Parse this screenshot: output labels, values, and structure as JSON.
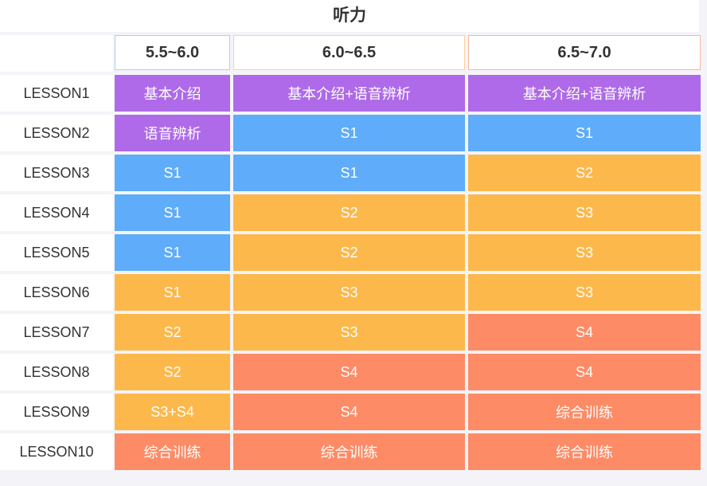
{
  "title": "听力",
  "colors": {
    "purple": "#ae6ae8",
    "blue": "#5eacfa",
    "yellow": "#fdb84b",
    "orange": "#fd8b66"
  },
  "columns": [
    {
      "label": "5.5~6.0",
      "border": "#a9d0f7"
    },
    {
      "label": "6.0~6.5",
      "border": "#f5d49a"
    },
    {
      "label": "6.5~7.0",
      "border": "#f6b7a0"
    }
  ],
  "rows": [
    {
      "label": "LESSON1",
      "cells": [
        {
          "text": "基本介绍",
          "color": "purple"
        },
        {
          "text": "基本介绍+语音辨析",
          "color": "purple"
        },
        {
          "text": "基本介绍+语音辨析",
          "color": "purple"
        }
      ]
    },
    {
      "label": "LESSON2",
      "cells": [
        {
          "text": "语音辨析",
          "color": "purple"
        },
        {
          "text": "S1",
          "color": "blue"
        },
        {
          "text": "S1",
          "color": "blue"
        }
      ]
    },
    {
      "label": "LESSON3",
      "cells": [
        {
          "text": "S1",
          "color": "blue"
        },
        {
          "text": "S1",
          "color": "blue"
        },
        {
          "text": "S2",
          "color": "yellow"
        }
      ]
    },
    {
      "label": "LESSON4",
      "cells": [
        {
          "text": "S1",
          "color": "blue"
        },
        {
          "text": "S2",
          "color": "yellow"
        },
        {
          "text": "S3",
          "color": "yellow"
        }
      ]
    },
    {
      "label": "LESSON5",
      "cells": [
        {
          "text": "S1",
          "color": "blue"
        },
        {
          "text": "S2",
          "color": "yellow"
        },
        {
          "text": "S3",
          "color": "yellow"
        }
      ]
    },
    {
      "label": "LESSON6",
      "cells": [
        {
          "text": "S1",
          "color": "yellow"
        },
        {
          "text": "S3",
          "color": "yellow"
        },
        {
          "text": "S3",
          "color": "yellow"
        }
      ]
    },
    {
      "label": "LESSON7",
      "cells": [
        {
          "text": "S2",
          "color": "yellow"
        },
        {
          "text": "S3",
          "color": "yellow"
        },
        {
          "text": "S4",
          "color": "orange"
        }
      ]
    },
    {
      "label": "LESSON8",
      "cells": [
        {
          "text": "S2",
          "color": "yellow"
        },
        {
          "text": "S4",
          "color": "orange"
        },
        {
          "text": "S4",
          "color": "orange"
        }
      ]
    },
    {
      "label": "LESSON9",
      "cells": [
        {
          "text": "S3+S4",
          "color": "yellow"
        },
        {
          "text": "S4",
          "color": "orange"
        },
        {
          "text": "综合训练",
          "color": "orange"
        }
      ]
    },
    {
      "label": "LESSON10",
      "cells": [
        {
          "text": "综合训练",
          "color": "orange"
        },
        {
          "text": "综合训练",
          "color": "orange"
        },
        {
          "text": "综合训练",
          "color": "orange"
        }
      ]
    }
  ]
}
